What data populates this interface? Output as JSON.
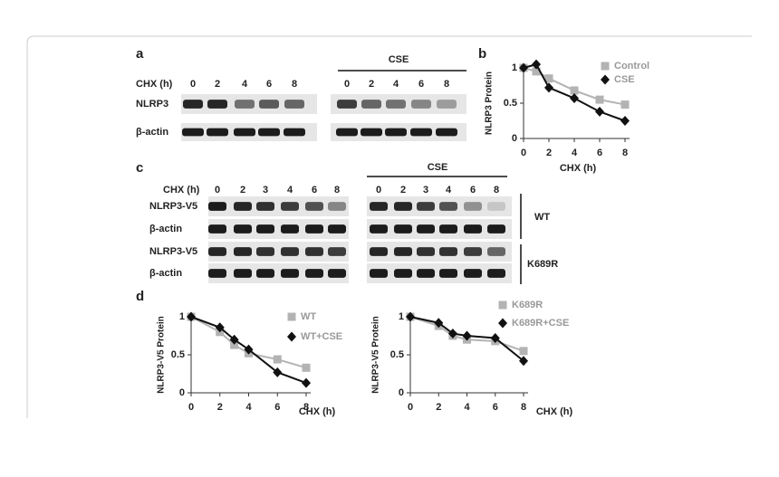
{
  "figure": {
    "labels": [
      "a",
      "b",
      "c",
      "d"
    ],
    "a": {
      "chx": "CHX (h)",
      "lanes": [
        "0",
        "2",
        "4",
        "6",
        "8"
      ],
      "treatment": "CSE",
      "rows": [
        "NLRP3",
        "β-actin"
      ]
    },
    "c": {
      "chx": "CHX (h)",
      "lanes": [
        "0",
        "2",
        "3",
        "4",
        "6",
        "8"
      ],
      "treatment": "CSE",
      "rows": [
        "NLRP3-V5",
        "β-actin",
        "NLRP3-V5",
        "β-actin"
      ],
      "groups": [
        "WT",
        "K689R"
      ]
    }
  },
  "chart_data": [
    {
      "type": "line",
      "ylabel": "NLRP3 Protein",
      "xlabel": "CHX (h)",
      "x": [
        0,
        1,
        2,
        4,
        6,
        8
      ],
      "xlim": [
        0,
        8
      ],
      "xticks": [
        0,
        2,
        4,
        6,
        8
      ],
      "ylim": [
        0,
        1
      ],
      "yticks": [
        0,
        0.5,
        1
      ],
      "series": [
        {
          "name": "Control",
          "color": "#b3b3b3",
          "marker": "square",
          "values": [
            1,
            0.95,
            0.85,
            0.68,
            0.55,
            0.48
          ]
        },
        {
          "name": "CSE",
          "color": "#111111",
          "marker": "diamond",
          "values": [
            1,
            1.05,
            0.72,
            0.57,
            0.38,
            0.25
          ]
        }
      ]
    },
    {
      "type": "line",
      "ylabel": "NLRP3-V5 Protein",
      "xlabel": "CHX (h)",
      "x": [
        0,
        2,
        3,
        4,
        6,
        8
      ],
      "xlim": [
        0,
        8
      ],
      "xticks": [
        0,
        2,
        4,
        6,
        8
      ],
      "ylim": [
        0,
        1
      ],
      "yticks": [
        0,
        0.5,
        1
      ],
      "series": [
        {
          "name": "WT",
          "color": "#b3b3b3",
          "marker": "square",
          "values": [
            1,
            0.8,
            0.63,
            0.52,
            0.44,
            0.33
          ]
        },
        {
          "name": "WT+CSE",
          "color": "#111111",
          "marker": "diamond",
          "values": [
            1,
            0.86,
            0.7,
            0.57,
            0.27,
            0.13
          ]
        }
      ]
    },
    {
      "type": "line",
      "ylabel": "NLRP3-V5 Protein",
      "xlabel": "CHX (h)",
      "x": [
        0,
        2,
        3,
        4,
        6,
        8
      ],
      "xlim": [
        0,
        8
      ],
      "xticks": [
        0,
        2,
        4,
        6,
        8
      ],
      "ylim": [
        0,
        1
      ],
      "yticks": [
        0,
        0.5,
        1
      ],
      "series": [
        {
          "name": "K689R",
          "color": "#b3b3b3",
          "marker": "square",
          "values": [
            1,
            0.88,
            0.75,
            0.7,
            0.68,
            0.55
          ]
        },
        {
          "name": "K689R+CSE",
          "color": "#111111",
          "marker": "diamond",
          "values": [
            1,
            0.92,
            0.78,
            0.75,
            0.72,
            0.42
          ]
        }
      ]
    }
  ]
}
